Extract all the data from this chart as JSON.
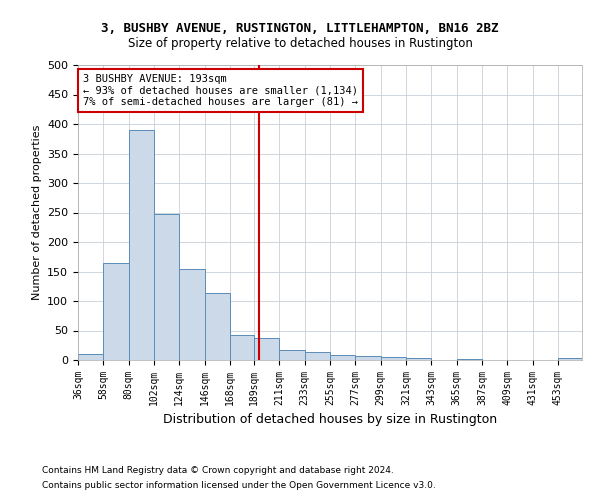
{
  "title": "3, BUSHBY AVENUE, RUSTINGTON, LITTLEHAMPTON, BN16 2BZ",
  "subtitle": "Size of property relative to detached houses in Rustington",
  "xlabel": "Distribution of detached houses by size in Rustington",
  "ylabel": "Number of detached properties",
  "footnote1": "Contains HM Land Registry data © Crown copyright and database right 2024.",
  "footnote2": "Contains public sector information licensed under the Open Government Licence v3.0.",
  "bar_color": "#ccd9e8",
  "bar_edge_color": "#5b8db8",
  "reference_line_x": 193,
  "reference_line_color": "#cc0000",
  "annotation_line1": "3 BUSHBY AVENUE: 193sqm",
  "annotation_line2": "← 93% of detached houses are smaller (1,134)",
  "annotation_line3": "7% of semi-detached houses are larger (81) →",
  "annotation_box_color": "#cc0000",
  "bins": [
    36,
    58,
    80,
    102,
    124,
    146,
    168,
    189,
    211,
    233,
    255,
    277,
    299,
    321,
    343,
    365,
    387,
    409,
    431,
    453,
    474
  ],
  "values": [
    10,
    165,
    390,
    248,
    155,
    113,
    43,
    37,
    17,
    14,
    8,
    6,
    5,
    3,
    0,
    2,
    0,
    0,
    0,
    3
  ],
  "ylim": [
    0,
    500
  ],
  "yticks": [
    0,
    50,
    100,
    150,
    200,
    250,
    300,
    350,
    400,
    450,
    500
  ],
  "background_color": "#ffffff",
  "grid_color": "#c8d0d8"
}
